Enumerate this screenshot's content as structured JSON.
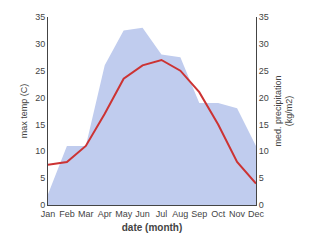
{
  "chart_data": {
    "type": "line",
    "categories": [
      "Jan",
      "Feb",
      "Mar",
      "Apr",
      "May",
      "Jun",
      "Jul",
      "Aug",
      "Sep",
      "Oct",
      "Nov",
      "Dec"
    ],
    "series": [
      {
        "type": "area",
        "color": "#c0ccee",
        "axis": "y2",
        "values": [
          2.0,
          11.0,
          11.0,
          26.0,
          32.5,
          33.0,
          28.0,
          27.5,
          19.0,
          19.0,
          18.0,
          11.0
        ]
      },
      {
        "type": "line",
        "color": "#cc3333",
        "axis": "y",
        "values": [
          7.5,
          8.0,
          11.0,
          17.0,
          23.5,
          26.0,
          27.0,
          25.0,
          21.0,
          15.0,
          8.0,
          4.0
        ]
      }
    ],
    "xlabel": "date (month)",
    "ylabel": "max temp (C)",
    "y2label": "med. precipitation\n(kg/m2)",
    "ylim": [
      0,
      35
    ],
    "yticks": [
      0,
      5,
      10,
      15,
      20,
      25,
      30,
      35
    ],
    "y2lim": [
      0,
      35
    ],
    "y2ticks": [
      0,
      5,
      10,
      15,
      20,
      25,
      30,
      35
    ],
    "grid": false
  }
}
